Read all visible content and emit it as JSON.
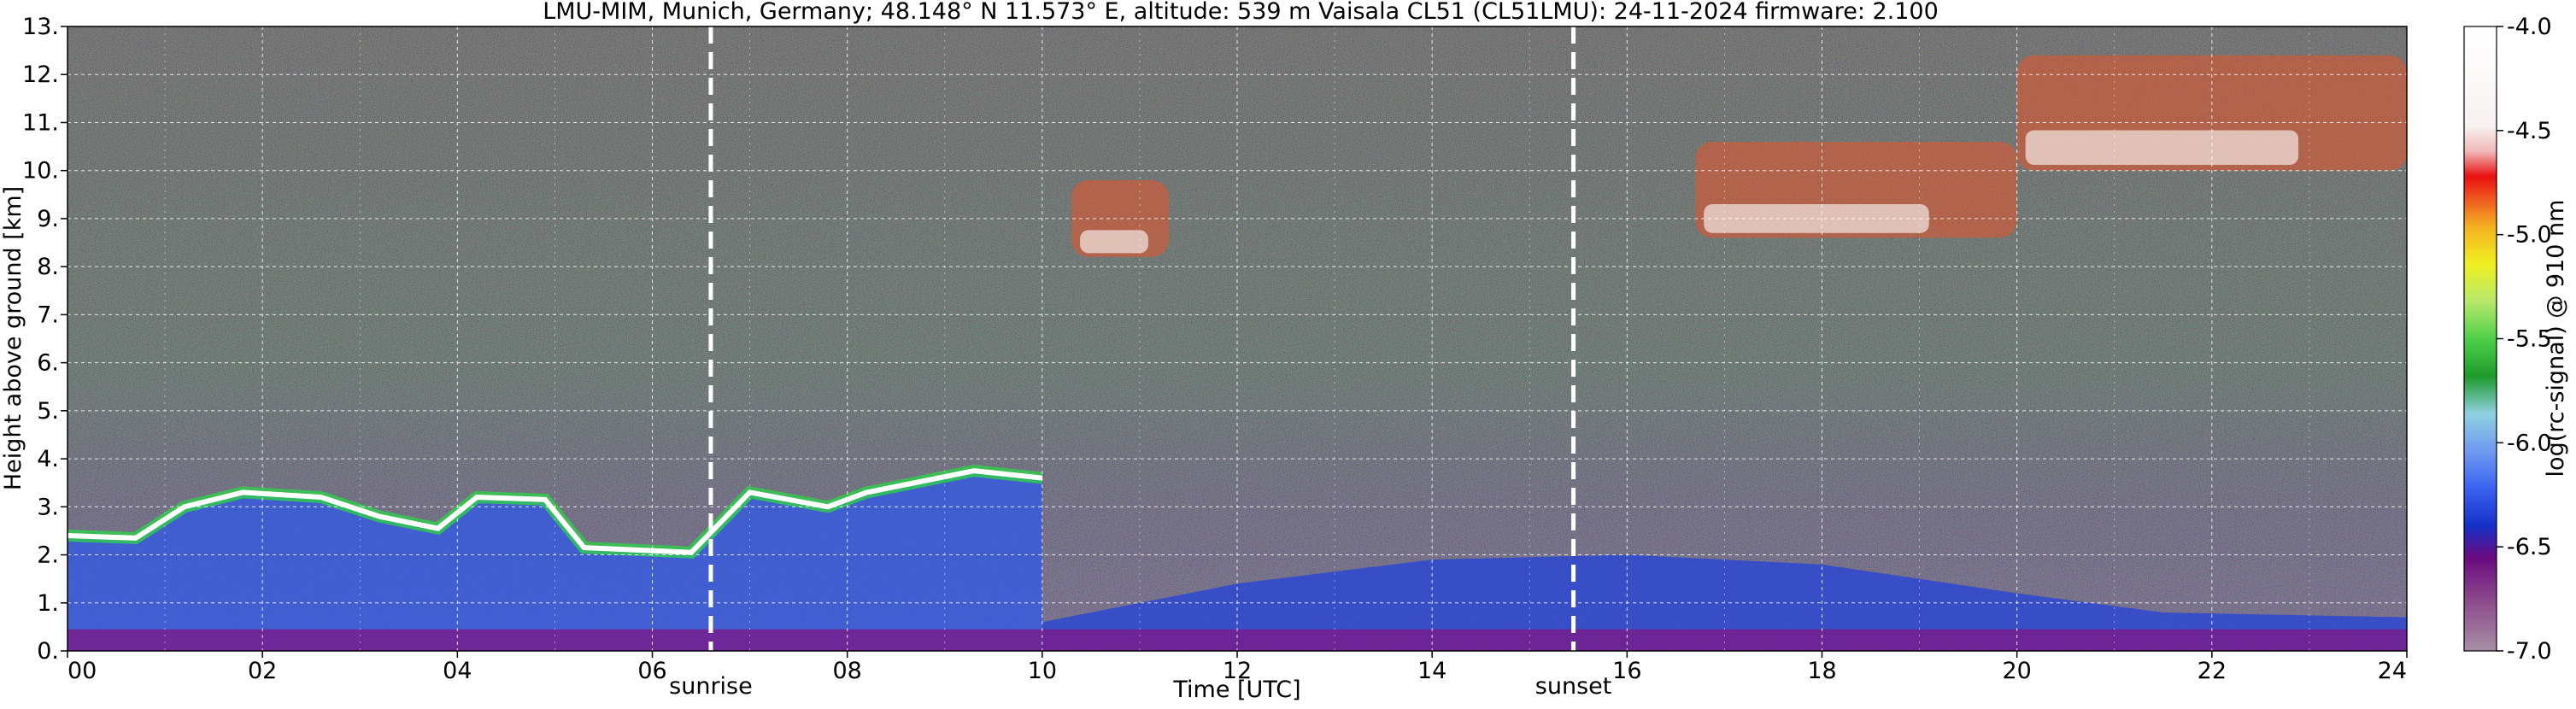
{
  "chart_data": {
    "type": "heatmap",
    "title": "LMU-MIM, Munich, Germany; 48.148° N 11.573° E, altitude: 539 m    Vaisala CL51 (CL51LMU): 24-11-2024    firmware: 2.100",
    "xlabel": "Time [UTC]",
    "ylabel": "Height above ground [km]",
    "xlim": [
      0,
      24
    ],
    "ylim": [
      0,
      13
    ],
    "x_ticks": [
      0,
      2,
      4,
      6,
      8,
      10,
      12,
      14,
      16,
      18,
      20,
      22,
      24
    ],
    "x_tick_labels": [
      "00",
      "02",
      "04",
      "06",
      "08",
      "10",
      "12",
      "14",
      "16",
      "18",
      "20",
      "22",
      "24"
    ],
    "y_ticks": [
      0,
      1,
      2,
      3,
      4,
      5,
      6,
      7,
      8,
      9,
      10,
      11,
      12,
      13
    ],
    "y_tick_labels": [
      "0.",
      "1.",
      "2.",
      "3.",
      "4.",
      "5.",
      "6.",
      "7.",
      "8.",
      "9.",
      "10.",
      "11.",
      "12.",
      "13."
    ],
    "grid": true,
    "events": [
      {
        "label": "sunrise",
        "time": 6.6
      },
      {
        "label": "sunset",
        "time": 15.45
      }
    ],
    "colorbar": {
      "label": "log(rc-signal) @ 910 nm",
      "range": [
        -7.0,
        -4.0
      ],
      "ticks": [
        -7.0,
        -6.5,
        -6.0,
        -5.5,
        -5.0,
        -4.5,
        -4.0
      ],
      "tick_labels": [
        "-7.0",
        "-6.5",
        "-6.0",
        "-5.5",
        "-5.0",
        "-4.5",
        "-4.0"
      ]
    },
    "features": {
      "boundary_layer_top_km": [
        {
          "t": 0.0,
          "h": 2.4
        },
        {
          "t": 0.7,
          "h": 2.35
        },
        {
          "t": 1.2,
          "h": 3.0
        },
        {
          "t": 1.8,
          "h": 3.3
        },
        {
          "t": 2.6,
          "h": 3.2
        },
        {
          "t": 3.2,
          "h": 2.8
        },
        {
          "t": 3.8,
          "h": 2.55
        },
        {
          "t": 4.2,
          "h": 3.2
        },
        {
          "t": 4.9,
          "h": 3.15
        },
        {
          "t": 5.3,
          "h": 2.15
        },
        {
          "t": 6.4,
          "h": 2.05
        },
        {
          "t": 7.0,
          "h": 3.3
        },
        {
          "t": 7.8,
          "h": 3.0
        },
        {
          "t": 8.2,
          "h": 3.3
        },
        {
          "t": 9.3,
          "h": 3.75
        },
        {
          "t": 10.0,
          "h": 3.6
        }
      ],
      "upper_clouds": [
        {
          "t_start": 10.3,
          "t_end": 11.3,
          "h_base": 8.2,
          "h_top": 9.8
        },
        {
          "t_start": 16.7,
          "t_end": 20.0,
          "h_base": 8.6,
          "h_top": 10.6
        },
        {
          "t_start": 20.0,
          "t_end": 24.0,
          "h_base": 10.0,
          "h_top": 12.4
        }
      ]
    }
  }
}
